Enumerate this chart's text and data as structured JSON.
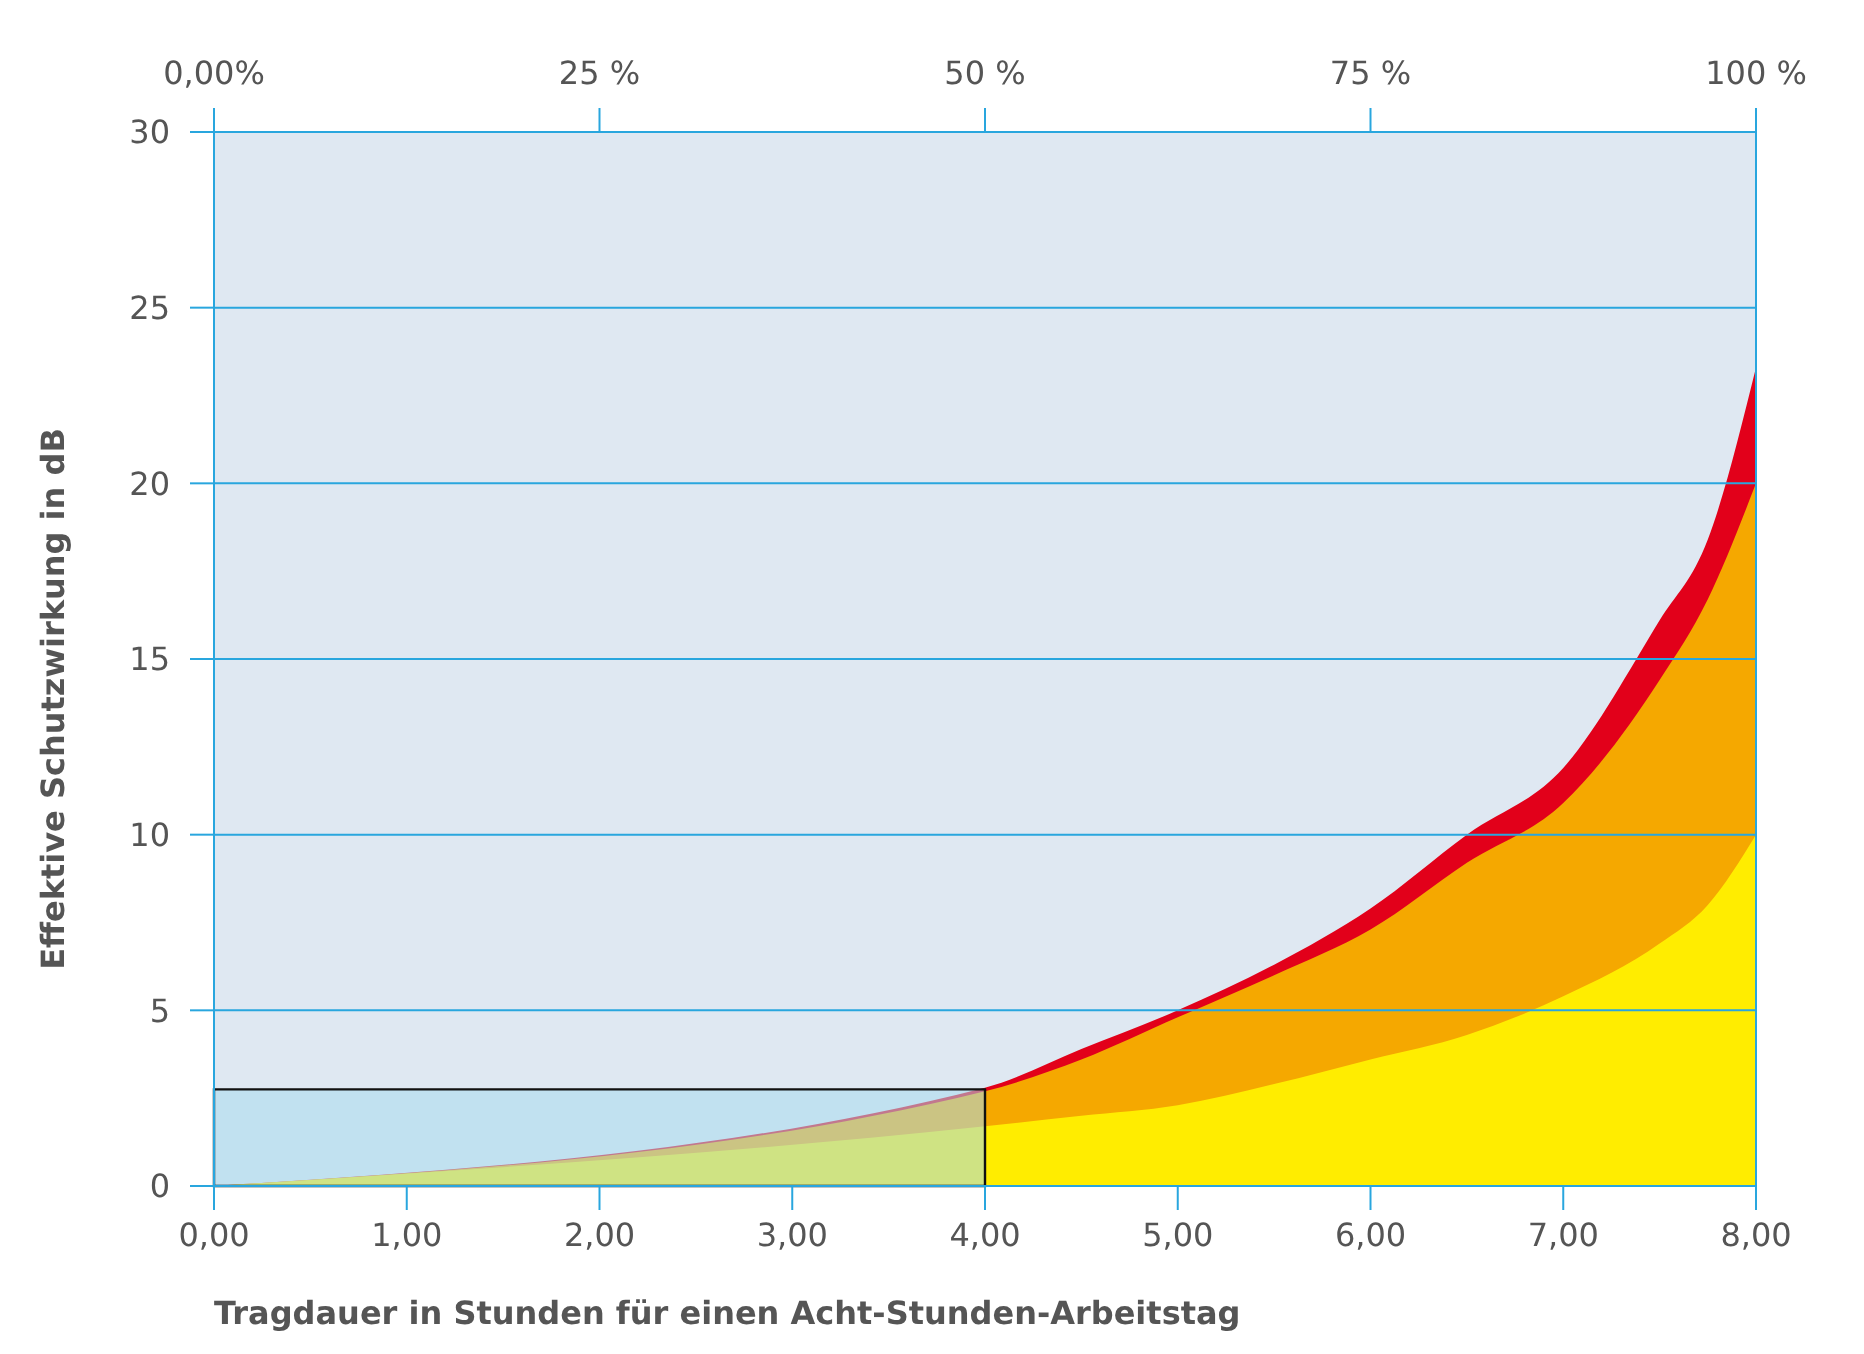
{
  "chart_data": {
    "type": "area",
    "xlabel": "Tragdauer in Stunden für einen Acht-Stunden-Arbeitstag",
    "ylabel": "Effektive Schutzwirkung in dB",
    "xlim": [
      0,
      8
    ],
    "xticks": [
      {
        "value": 0,
        "label": "0,00"
      },
      {
        "value": 1,
        "label": "1,00"
      },
      {
        "value": 2,
        "label": "2,00"
      },
      {
        "value": 3,
        "label": "3,00"
      },
      {
        "value": 4,
        "label": "4,00"
      },
      {
        "value": 5,
        "label": "5,00"
      },
      {
        "value": 6,
        "label": "6,00"
      },
      {
        "value": 7,
        "label": "7,00"
      },
      {
        "value": 8,
        "label": "8,00"
      }
    ],
    "x2lim": [
      0,
      100
    ],
    "x2ticks": [
      {
        "value": 0,
        "label": "0,00%"
      },
      {
        "value": 25,
        "label": "25 %"
      },
      {
        "value": 50,
        "label": "50 %"
      },
      {
        "value": 75,
        "label": "75 %"
      },
      {
        "value": 100,
        "label": "100 %"
      }
    ],
    "ylim": [
      0,
      30
    ],
    "yticks": [
      0,
      5,
      10,
      15,
      20,
      25,
      30
    ],
    "grid": "y",
    "series": [
      {
        "color": "#e2001a",
        "x": [
          0,
          4,
          4.5,
          5,
          5.5,
          6,
          6.5,
          7,
          7.5,
          7.75,
          8
        ],
        "values": [
          0,
          2.8,
          3.9,
          5.0,
          6.3,
          7.9,
          10,
          11.9,
          16.1,
          18.4,
          23.3
        ]
      },
      {
        "color": "#f5a800",
        "x": [
          0,
          4,
          4.5,
          5,
          5.5,
          6,
          6.5,
          7,
          7.5,
          7.75,
          8
        ],
        "values": [
          0,
          2.7,
          3.6,
          4.8,
          6.0,
          7.3,
          9.2,
          10.9,
          14.4,
          16.7,
          20
        ]
      },
      {
        "color": "#ffed00",
        "x": [
          0,
          4,
          4.5,
          5,
          5.5,
          6,
          6.5,
          7,
          7.5,
          7.75,
          8
        ],
        "values": [
          0,
          1.7,
          2.0,
          2.3,
          2.9,
          3.6,
          4.3,
          5.4,
          6.9,
          8.0,
          10
        ]
      },
      {
        "color": "#a8dbef",
        "x": [
          0,
          4
        ],
        "values": [
          2.75,
          2.75
        ]
      }
    ]
  }
}
